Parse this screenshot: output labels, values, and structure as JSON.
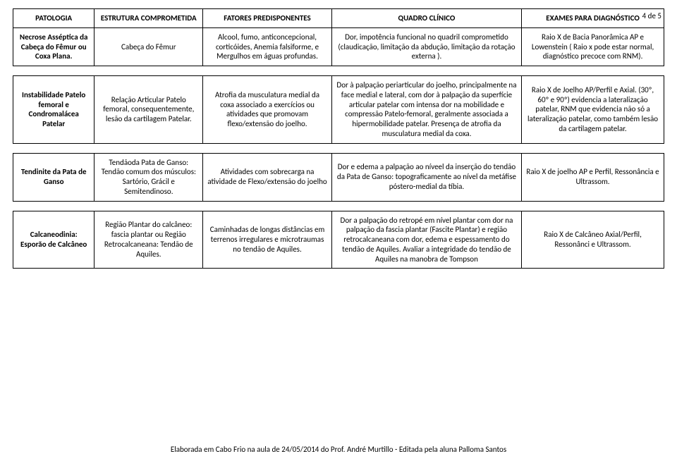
{
  "page_number": "4 de 5",
  "headers": {
    "patologia": "PATOLOGIA",
    "estrutura": "ESTRUTURA COMPROMETIDA",
    "fatores": "FATORES PREDISPONENTES",
    "quadro": "QUADRO CLÍNICO",
    "exames": "EXAMES PARA DIAGNÓSTICO"
  },
  "rows": [
    {
      "patologia": "Necrose Asséptica da Cabeça do Fêmur ou Coxa Plana.",
      "estrutura": "Cabeça do Fêmur",
      "fatores": "Alcool, fumo, anticoncepcional, corticóides, Anemia falsiforme, e Mergulhos em águas profundas.",
      "quadro": "Dor, impotência funcional no quadril comprometido (claudicação, limitação da abdução, limitação da rotação externa ).",
      "exames": "Raio X de Bacia Panorâmica AP e Lowenstein ( Raio x pode estar normal, diagnóstico precoce com RNM)."
    },
    {
      "patologia": "Instabilidade Patelo femoral e Condromalácea Patelar",
      "estrutura": "Relação Articular Patelo femoral, consequentemente, lesão da cartilagem Patelar.",
      "fatores": "Atrofia da musculatura medial da coxa associado a exercícios ou atividades que promovam flexo/extensão do joelho.",
      "quadro": "Dor à palpação periarticular do joelho, principalmente na face medial e lateral, com dor à palpação da superfície articular patelar com intensa dor na mobilidade e compressão Patelo-femoral, geralmente associada a hipermobilidade patelar. Presença de atrofia da musculatura medial da coxa.",
      "exames": "Raio X de Joelho AP/Perfil e Axial. (30º, 60º e 90º) evidencia a lateralização patelar, RNM que evidencia não só a lateralização patelar, como também lesão da cartilagem patelar."
    },
    {
      "patologia": "Tendinite da Pata de Ganso",
      "estrutura": "Tendãoda Pata de Ganso: Tendão comum dos músculos:  Sartório, Grácil e Semitendinoso.",
      "fatores": "Atividades com sobrecarga na atividade de Flexo/extensão do joelho",
      "quadro": "Dor e edema a palpação ao níveel da inserção do tendão da Pata de Ganso: topograficamente ao nível da metáfise póstero-medial da tíbia.",
      "exames": "Raio X de joelho AP e Perfil, Ressonância e Ultrassom."
    },
    {
      "patologia": "Calcaneodinia: Esporão de Calcâneo",
      "estrutura": "Região Plantar do calcâneo: fascia plantar  ou Região Retrocalcaneana: Tendão de Aquiles.",
      "fatores": "Caminhadas de longas distâncias em terrenos irregulares e microtraumas no tendão de Aquiles.",
      "quadro": "Dor a palpação do retropé em nível plantar com dor na palpação da fascia plantar (Fascite Plantar) e região retrocalcaneana com dor, edema e espessamento do tendão de Aquiles. Avaliar a integridade do tendão de Aquiles na manobra de Tompson",
      "exames": "Raio X de Calcâneo Axial/Perfil, Ressonânci e Ultrassom."
    }
  ],
  "footer": "Elaborada em Cabo Frio na aula de  24/05/2014 do Prof.  André Murtillo - Editada pela aluna Palloma Santos"
}
